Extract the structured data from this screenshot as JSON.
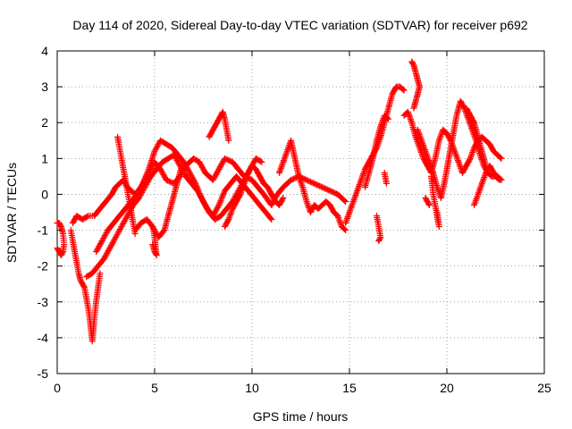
{
  "chart_data": {
    "type": "scatter",
    "title": "Day 114 of 2020, Sidereal Day-to-day VTEC variation (SDTVAR) for receiver p692",
    "xlabel": "GPS time / hours",
    "ylabel": "SDTVAR / TECUs",
    "xlim": [
      0,
      25
    ],
    "ylim": [
      -5,
      4
    ],
    "xticks": [
      0,
      5,
      10,
      15,
      20,
      25
    ],
    "yticks": [
      -5,
      -4,
      -3,
      -2,
      -1,
      0,
      1,
      2,
      3,
      4
    ],
    "grid": true,
    "legend": "none",
    "marker": "+",
    "series": [
      {
        "name": "SDTVAR",
        "color": "#ff0000",
        "tracks": [
          {
            "x": [
              0.0,
              0.1,
              0.2,
              0.3,
              0.35,
              0.3,
              0.2,
              0.1,
              0.0
            ],
            "y": [
              -0.8,
              -0.8,
              -0.9,
              -1.1,
              -1.4,
              -1.6,
              -1.7,
              -1.6,
              -1.5
            ]
          },
          {
            "x": [
              0.7,
              0.8,
              0.9,
              1.0,
              1.1,
              1.2,
              1.3,
              1.4,
              1.5,
              1.6,
              1.7,
              1.8,
              1.9,
              2.0,
              2.1,
              2.2
            ],
            "y": [
              -1.0,
              -1.3,
              -1.6,
              -1.9,
              -2.2,
              -2.4,
              -2.5,
              -2.6,
              -2.9,
              -3.2,
              -3.6,
              -4.1,
              -3.5,
              -3.0,
              -2.6,
              -2.2
            ]
          },
          {
            "x": [
              0.8,
              1.0,
              1.3,
              1.6,
              1.9,
              2.2,
              2.5,
              2.8,
              3.0,
              3.2,
              3.4,
              3.6,
              3.8,
              4.0,
              4.3,
              4.6,
              5.0,
              5.3,
              5.6,
              6.0,
              6.3,
              6.6,
              7.0,
              7.3,
              7.6,
              8.0,
              8.3,
              8.6,
              9.0,
              9.3,
              9.6,
              10.0,
              10.3,
              10.6,
              11.0,
              11.3,
              11.6,
              12.0,
              12.4,
              12.8,
              13.2,
              13.6,
              14.0,
              14.4,
              14.8
            ],
            "y": [
              -0.8,
              -0.6,
              -0.7,
              -0.6,
              -0.6,
              -0.4,
              -0.2,
              0.0,
              0.2,
              0.3,
              0.4,
              0.2,
              0.1,
              0.0,
              0.2,
              0.5,
              0.9,
              0.7,
              0.4,
              0.3,
              0.5,
              0.8,
              1.0,
              0.9,
              0.6,
              0.4,
              0.7,
              1.0,
              0.9,
              0.7,
              0.5,
              0.4,
              0.2,
              0.0,
              -0.3,
              0.0,
              0.2,
              0.4,
              0.5,
              0.4,
              0.3,
              0.2,
              0.1,
              0.0,
              -0.2
            ]
          },
          {
            "x": [
              1.5,
              1.8,
              2.1,
              2.4,
              2.7,
              3.0,
              3.3,
              3.6,
              3.9,
              4.2,
              4.5,
              4.8,
              5.1,
              5.4,
              5.7,
              6.0,
              6.3,
              6.6,
              6.9,
              7.2,
              7.5,
              7.8,
              8.1,
              8.4,
              8.7,
              9.0,
              9.3,
              9.6,
              9.9,
              10.2,
              10.5
            ],
            "y": [
              -2.3,
              -2.2,
              -2.0,
              -1.8,
              -1.5,
              -1.2,
              -0.9,
              -0.6,
              -0.3,
              -0.1,
              0.2,
              0.5,
              0.7,
              0.9,
              1.0,
              1.1,
              0.8,
              0.5,
              0.3,
              0.1,
              -0.2,
              -0.5,
              -0.7,
              -0.6,
              -0.4,
              -0.2,
              0.1,
              0.4,
              0.7,
              1.0,
              0.9
            ]
          },
          {
            "x": [
              2.0,
              2.3,
              2.6,
              2.9,
              3.2,
              3.5,
              3.8,
              4.1,
              4.4,
              4.7,
              5.0,
              5.3,
              5.6,
              5.9,
              6.2,
              6.5,
              6.8,
              7.1,
              7.4,
              7.7,
              8.0,
              8.3,
              8.6,
              8.9,
              9.2,
              9.5,
              9.8,
              10.1,
              10.4,
              10.7,
              11.0
            ],
            "y": [
              -1.6,
              -1.3,
              -1.0,
              -0.8,
              -0.6,
              -0.4,
              -0.2,
              0.0,
              0.3,
              0.7,
              1.2,
              1.5,
              1.4,
              1.3,
              1.1,
              0.9,
              0.6,
              0.3,
              -0.1,
              -0.4,
              -0.6,
              -0.3,
              0.1,
              0.3,
              0.5,
              0.3,
              0.1,
              -0.1,
              -0.3,
              -0.5,
              -0.7
            ]
          },
          {
            "x": [
              3.1,
              3.2,
              3.3,
              3.4,
              3.5,
              3.6,
              3.7,
              3.8,
              3.9,
              4.0
            ],
            "y": [
              1.6,
              1.3,
              1.0,
              0.7,
              0.4,
              0.1,
              -0.2,
              -0.5,
              -0.8,
              -1.1
            ]
          },
          {
            "x": [
              4.0,
              4.3,
              4.6,
              4.9,
              5.2,
              5.5,
              5.8,
              6.1,
              6.4
            ],
            "y": [
              -1.0,
              -0.8,
              -0.7,
              -0.9,
              -1.2,
              -1.0,
              -0.4,
              0.2,
              0.8
            ]
          },
          {
            "x": [
              4.9,
              5.0,
              5.1,
              5.0,
              4.9
            ],
            "y": [
              -1.4,
              -1.6,
              -1.7,
              -1.2,
              -0.9
            ]
          },
          {
            "x": [
              7.8,
              8.0,
              8.2,
              8.4,
              8.5,
              8.6,
              8.7,
              8.8
            ],
            "y": [
              1.6,
              1.8,
              2.0,
              2.2,
              2.3,
              2.1,
              1.8,
              1.5
            ]
          },
          {
            "x": [
              8.6,
              8.8,
              9.0,
              9.2,
              9.4,
              9.6,
              9.8,
              10.0,
              10.2,
              10.4,
              10.6,
              10.8,
              11.0,
              11.2,
              11.4,
              11.6
            ],
            "y": [
              -0.9,
              -0.7,
              -0.4,
              -0.2,
              0.0,
              0.3,
              0.6,
              0.8,
              0.7,
              0.5,
              0.3,
              0.2,
              0.0,
              -0.2,
              -0.3,
              -0.1
            ]
          },
          {
            "x": [
              11.4,
              11.6,
              11.8,
              12.0,
              12.2,
              12.4,
              12.6,
              12.8,
              13.0,
              13.2,
              13.4,
              13.6,
              13.8,
              14.0,
              14.2,
              14.4,
              14.6,
              14.8
            ],
            "y": [
              0.6,
              0.9,
              1.2,
              1.5,
              1.0,
              0.5,
              0.2,
              -0.2,
              -0.5,
              -0.3,
              -0.4,
              -0.3,
              -0.2,
              -0.3,
              -0.5,
              -0.6,
              -0.9,
              -1.0
            ]
          },
          {
            "x": [
              14.8,
              15.0,
              15.2,
              15.4,
              15.6,
              15.8,
              16.0,
              16.2,
              16.4,
              16.6,
              16.8,
              17.0,
              17.2,
              17.4,
              17.6,
              17.8
            ],
            "y": [
              -0.8,
              -0.5,
              -0.2,
              0.1,
              0.4,
              0.7,
              0.9,
              1.1,
              1.3,
              1.6,
              2.0,
              2.4,
              2.8,
              3.0,
              3.0,
              2.9
            ]
          },
          {
            "x": [
              15.8,
              16.0,
              16.2,
              16.4,
              16.6,
              16.8,
              17.0
            ],
            "y": [
              0.2,
              0.6,
              1.0,
              1.5,
              1.9,
              2.2,
              2.1
            ]
          },
          {
            "x": [
              16.4,
              16.5,
              16.6,
              16.5
            ],
            "y": [
              -0.6,
              -0.9,
              -1.2,
              -1.3
            ]
          },
          {
            "x": [
              16.8,
              16.9
            ],
            "y": [
              0.6,
              0.3
            ]
          },
          {
            "x": [
              18.2,
              18.3,
              18.4,
              18.5,
              18.6,
              18.5,
              18.4,
              18.3
            ],
            "y": [
              3.7,
              3.6,
              3.4,
              3.2,
              3.0,
              2.8,
              2.6,
              2.4
            ]
          },
          {
            "x": [
              17.8,
              18.0,
              18.2,
              18.4,
              18.6,
              18.8,
              19.0,
              19.2,
              19.4,
              19.6,
              19.8,
              20.0,
              20.2,
              20.4,
              20.6,
              20.8,
              21.0,
              21.2,
              21.4,
              21.6,
              21.8,
              22.0,
              22.2,
              22.4,
              22.6,
              22.8
            ],
            "y": [
              2.2,
              2.3,
              2.0,
              1.6,
              1.3,
              1.0,
              0.8,
              0.6,
              1.0,
              1.5,
              1.8,
              1.7,
              1.5,
              1.2,
              0.9,
              0.6,
              0.8,
              1.0,
              1.3,
              1.5,
              1.6,
              1.5,
              1.4,
              1.2,
              1.1,
              1.0
            ]
          },
          {
            "x": [
              18.5,
              18.7,
              18.9,
              19.1,
              19.3,
              19.5,
              19.7,
              19.9,
              20.1,
              20.3,
              20.5,
              20.7,
              20.9,
              21.1,
              21.3,
              21.5,
              21.7,
              21.9,
              22.1,
              22.3,
              22.5,
              22.7
            ],
            "y": [
              1.8,
              1.5,
              1.2,
              0.9,
              0.6,
              0.2,
              -0.1,
              0.4,
              1.0,
              1.6,
              2.2,
              2.6,
              2.4,
              2.1,
              1.8,
              1.5,
              1.1,
              0.8,
              0.6,
              0.5,
              0.5,
              0.4
            ]
          },
          {
            "x": [
              19.2,
              19.3,
              19.4,
              19.5,
              19.6,
              19.5
            ],
            "y": [
              0.5,
              0.0,
              -0.3,
              -0.6,
              -0.9,
              -0.5
            ]
          },
          {
            "x": [
              18.9,
              19.0,
              19.1
            ],
            "y": [
              -0.1,
              -0.2,
              -0.3
            ]
          },
          {
            "x": [
              21.4,
              21.6,
              21.8,
              22.0,
              22.2,
              22.4,
              22.6,
              22.8
            ],
            "y": [
              -0.3,
              0.0,
              0.3,
              0.6,
              0.8,
              0.6,
              0.5,
              0.4
            ]
          },
          {
            "x": [
              21.0,
              21.2,
              21.4,
              21.6,
              21.8,
              22.0
            ],
            "y": [
              2.4,
              2.2,
              2.0,
              1.6,
              1.2,
              0.8
            ]
          }
        ]
      }
    ]
  }
}
